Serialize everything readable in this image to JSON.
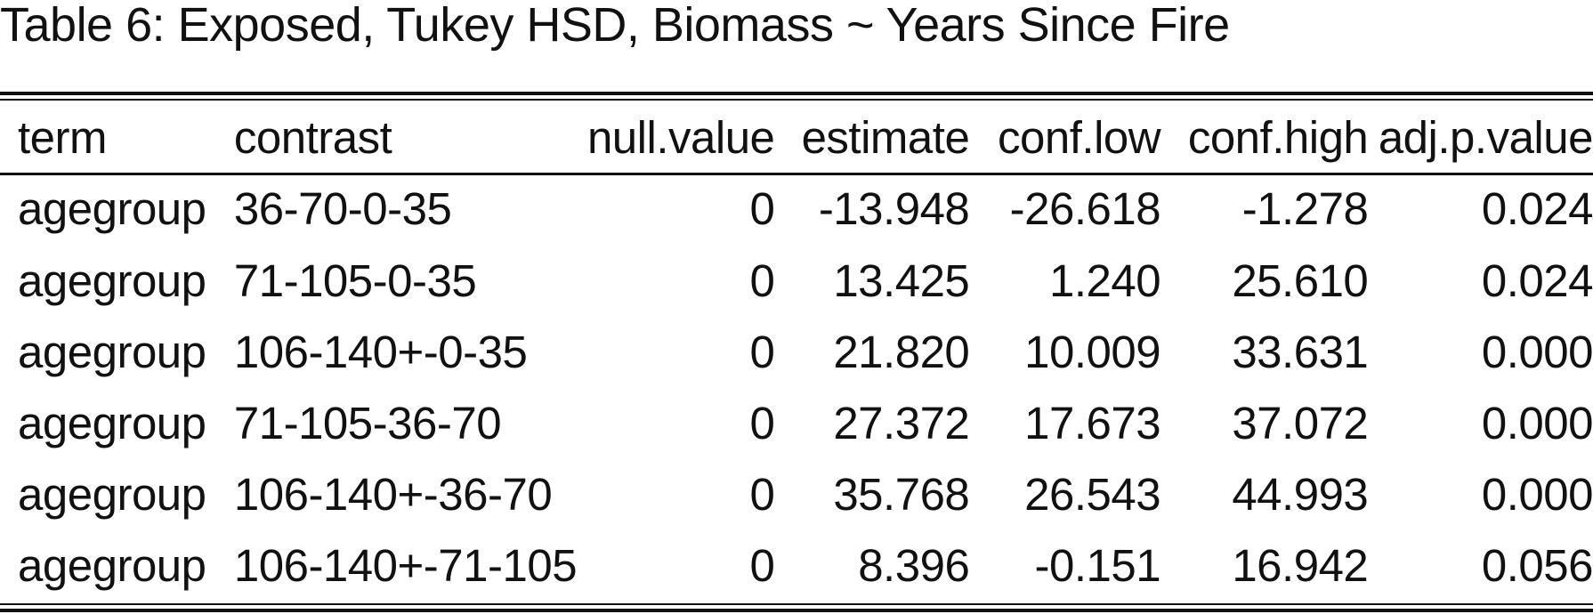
{
  "caption": "Table 6: Exposed, Tukey HSD, Biomass ~ Years Since Fire",
  "columns": [
    "term",
    "contrast",
    "null.value",
    "estimate",
    "conf.low",
    "conf.high",
    "adj.p.value"
  ],
  "rows": [
    [
      "agegroup",
      "36-70-0-35",
      "0",
      "-13.948",
      "-26.618",
      "-1.278",
      "0.024"
    ],
    [
      "agegroup",
      "71-105-0-35",
      "0",
      "13.425",
      "1.240",
      "25.610",
      "0.024"
    ],
    [
      "agegroup",
      "106-140+-0-35",
      "0",
      "21.820",
      "10.009",
      "33.631",
      "0.000"
    ],
    [
      "agegroup",
      "71-105-36-70",
      "0",
      "27.372",
      "17.673",
      "37.072",
      "0.000"
    ],
    [
      "agegroup",
      "106-140+-36-70",
      "0",
      "35.768",
      "26.543",
      "44.993",
      "0.000"
    ],
    [
      "agegroup",
      "106-140+-71-105",
      "0",
      "8.396",
      "-0.151",
      "16.942",
      "0.056"
    ]
  ]
}
